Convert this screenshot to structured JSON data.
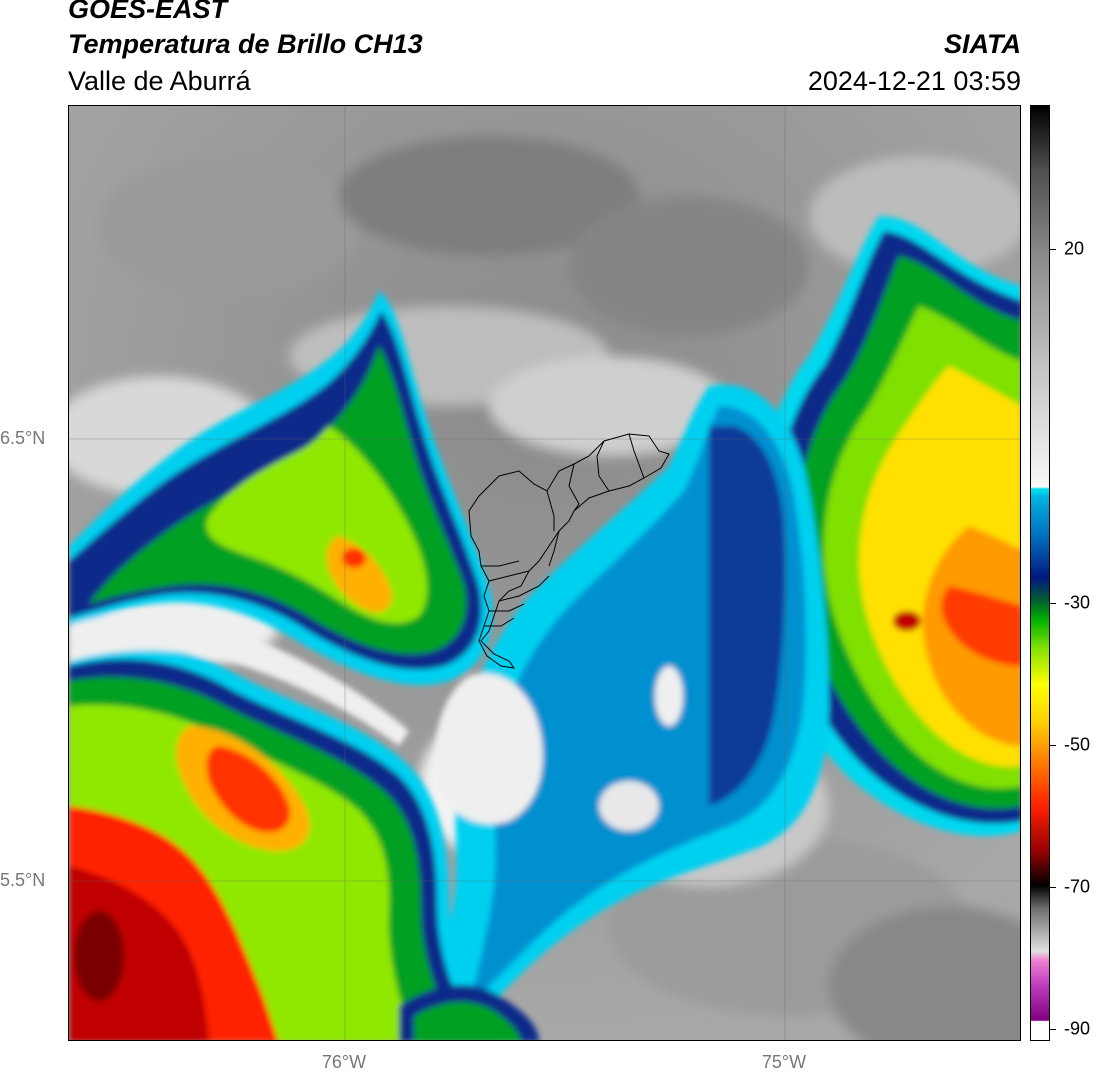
{
  "header": {
    "satellite": "GOES-EAST",
    "product": "Temperatura de Brillo CH13",
    "region": "Valle de Aburrá",
    "organization": "SIATA",
    "datetime": "2024-12-21 03:59"
  },
  "map": {
    "lat_labels": [
      "6.5°N",
      "5.5°N"
    ],
    "lon_labels": [
      "76°W",
      "75°W"
    ]
  },
  "colorbar": {
    "ticks": [
      "20",
      "-30",
      "-50",
      "-70",
      "-90"
    ],
    "range": [
      -90,
      30
    ],
    "colors": [
      "#ffffff",
      "#b015b0",
      "#e070d0",
      "#d0d0d0",
      "#7a7a7a",
      "#1a1a1a",
      "#b00000",
      "#ff2000",
      "#ff8000",
      "#ffd000",
      "#ffff00",
      "#90ee00",
      "#00c000",
      "#007000",
      "#002080",
      "#0060c0",
      "#00a0e0",
      "#00e0f0",
      "#f0f0f0",
      "#b0b0b0",
      "#606060",
      "#101010"
    ]
  }
}
